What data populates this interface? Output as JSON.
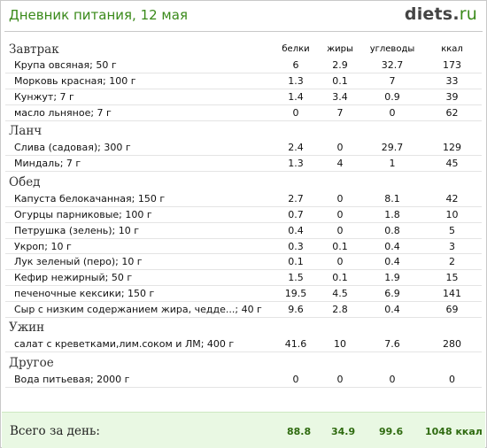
{
  "title": "Дневник питания, 12 мая",
  "logo": {
    "name": "diets",
    "dot": ".",
    "tld": "ru"
  },
  "columns": {
    "protein": "белки",
    "fat": "жиры",
    "carbs": "углеводы",
    "kcal": "ккал"
  },
  "sections": [
    {
      "name": "Завтрак",
      "items": [
        {
          "name": "Крупа овсяная; 50 г",
          "protein": "6",
          "fat": "2.9",
          "carbs": "32.7",
          "kcal": "173"
        },
        {
          "name": "Морковь красная; 100 г",
          "protein": "1.3",
          "fat": "0.1",
          "carbs": "7",
          "kcal": "33"
        },
        {
          "name": "Кунжут; 7 г",
          "protein": "1.4",
          "fat": "3.4",
          "carbs": "0.9",
          "kcal": "39"
        },
        {
          "name": "масло льняное; 7 г",
          "protein": "0",
          "fat": "7",
          "carbs": "0",
          "kcal": "62"
        }
      ]
    },
    {
      "name": "Ланч",
      "items": [
        {
          "name": "Слива (садовая); 300 г",
          "protein": "2.4",
          "fat": "0",
          "carbs": "29.7",
          "kcal": "129"
        },
        {
          "name": "Миндаль; 7 г",
          "protein": "1.3",
          "fat": "4",
          "carbs": "1",
          "kcal": "45"
        }
      ]
    },
    {
      "name": "Обед",
      "items": [
        {
          "name": "Капуста белокачанная; 150 г",
          "protein": "2.7",
          "fat": "0",
          "carbs": "8.1",
          "kcal": "42"
        },
        {
          "name": "Огурцы парниковые; 100 г",
          "protein": "0.7",
          "fat": "0",
          "carbs": "1.8",
          "kcal": "10"
        },
        {
          "name": "Петрушка (зелень); 10 г",
          "protein": "0.4",
          "fat": "0",
          "carbs": "0.8",
          "kcal": "5"
        },
        {
          "name": "Укроп; 10 г",
          "protein": "0.3",
          "fat": "0.1",
          "carbs": "0.4",
          "kcal": "3"
        },
        {
          "name": "Лук зеленый (перо); 10 г",
          "protein": "0.1",
          "fat": "0",
          "carbs": "0.4",
          "kcal": "2"
        },
        {
          "name": "Кефир нежирный; 50 г",
          "protein": "1.5",
          "fat": "0.1",
          "carbs": "1.9",
          "kcal": "15"
        },
        {
          "name": "печеночные кексики; 150 г",
          "protein": "19.5",
          "fat": "4.5",
          "carbs": "6.9",
          "kcal": "141"
        },
        {
          "name": "Сыр с низким содержанием жира, чедде...; 40 г",
          "protein": "9.6",
          "fat": "2.8",
          "carbs": "0.4",
          "kcal": "69"
        }
      ]
    },
    {
      "name": "Ужин",
      "items": [
        {
          "name": "салат с креветками,лим.соком и ЛМ; 400 г",
          "protein": "41.6",
          "fat": "10",
          "carbs": "7.6",
          "kcal": "280"
        }
      ]
    },
    {
      "name": "Другое",
      "items": [
        {
          "name": "Вода питьевая; 2000 г",
          "protein": "0",
          "fat": "0",
          "carbs": "0",
          "kcal": "0"
        }
      ]
    }
  ],
  "totals": {
    "label": "Всего за день:",
    "protein": "88.8",
    "fat": "34.9",
    "carbs": "99.6",
    "kcal": "1048 ккал"
  }
}
